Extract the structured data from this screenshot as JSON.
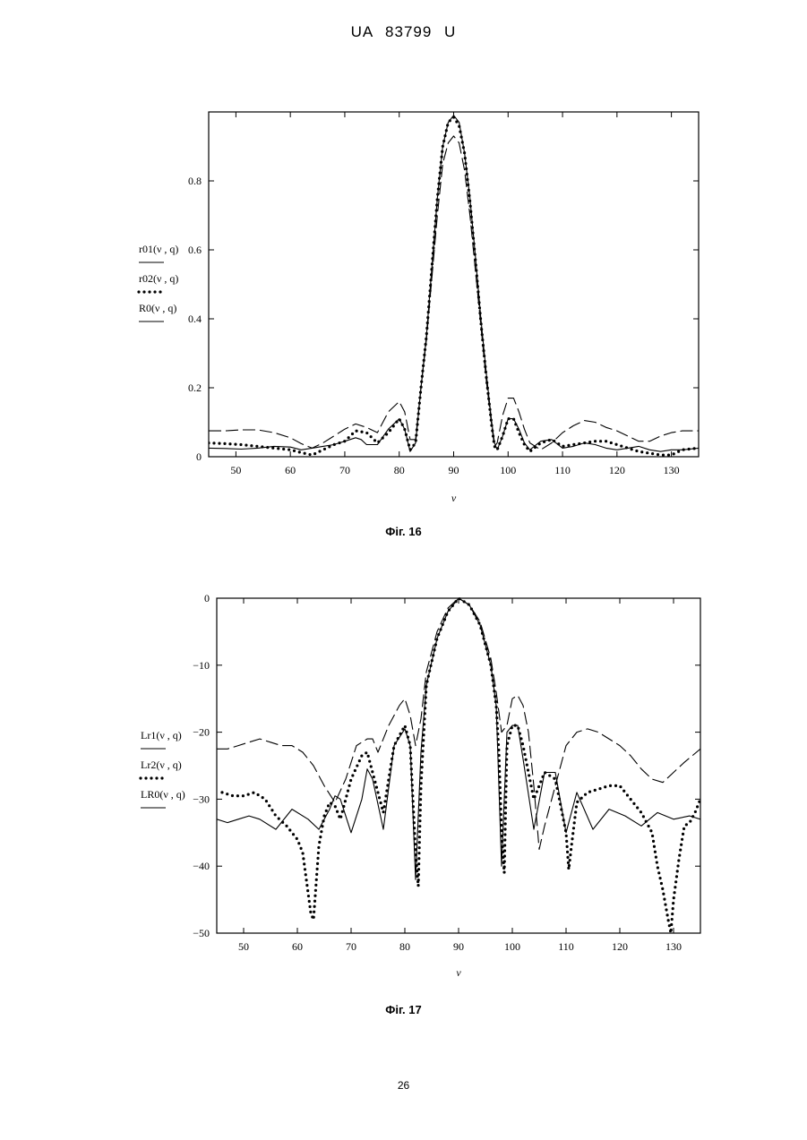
{
  "document": {
    "header": "UA 83799 U",
    "page_number": "26"
  },
  "chart_data": [
    {
      "type": "line",
      "caption": "Фіг. 16",
      "xlabel": "ν",
      "ylabel": "",
      "xlim": [
        45,
        135
      ],
      "ylim": [
        0,
        1
      ],
      "xticks": [
        "50",
        "60",
        "70",
        "80",
        "90",
        "100",
        "110",
        "120",
        "130"
      ],
      "xtick_values": [
        50,
        60,
        70,
        80,
        90,
        100,
        110,
        120,
        130
      ],
      "yticks": [
        "0",
        "0.2",
        "0.4",
        "0.6",
        "0.8"
      ],
      "ytick_values": [
        0,
        0.2,
        0.4,
        0.6,
        0.8
      ],
      "grid": false,
      "legend_position": "left",
      "series": [
        {
          "name": "r01(ν , q)",
          "style": "solid",
          "x": [
            45,
            48,
            51,
            54,
            57,
            60,
            62,
            64,
            66,
            68,
            70,
            72,
            73,
            74,
            76,
            78,
            80,
            81,
            82,
            83,
            84,
            85,
            86,
            87,
            88,
            89,
            90,
            91,
            92,
            93,
            94,
            95,
            96,
            97,
            97.5,
            98,
            99,
            100,
            101,
            102,
            103,
            104,
            106,
            108,
            110,
            112,
            114,
            116,
            118,
            120,
            122,
            124,
            126,
            128,
            130,
            132,
            135
          ],
          "y": [
            0.025,
            0.024,
            0.022,
            0.025,
            0.03,
            0.028,
            0.02,
            0.025,
            0.03,
            0.035,
            0.045,
            0.055,
            0.05,
            0.035,
            0.035,
            0.08,
            0.11,
            0.08,
            0.015,
            0.04,
            0.2,
            0.35,
            0.55,
            0.75,
            0.9,
            0.97,
            0.99,
            0.97,
            0.88,
            0.75,
            0.58,
            0.4,
            0.24,
            0.1,
            0.04,
            0.02,
            0.06,
            0.11,
            0.11,
            0.08,
            0.04,
            0.02,
            0.045,
            0.05,
            0.025,
            0.03,
            0.04,
            0.035,
            0.025,
            0.02,
            0.025,
            0.03,
            0.02,
            0.015,
            0.02,
            0.02,
            0.025
          ]
        },
        {
          "name": "r02(ν , q)",
          "style": "dotted",
          "x": [
            45,
            48,
            51,
            54,
            57,
            60,
            62,
            64,
            66,
            68,
            70,
            72,
            74,
            76,
            78,
            80,
            81,
            82,
            83,
            84,
            85,
            86,
            87,
            88,
            89,
            90,
            91,
            92,
            93,
            94,
            95,
            96,
            97,
            97.5,
            98,
            99,
            100,
            101,
            102,
            103,
            104,
            106,
            108,
            110,
            112,
            114,
            116,
            118,
            120,
            122,
            124,
            126,
            128,
            130,
            132,
            135
          ],
          "y": [
            0.04,
            0.038,
            0.035,
            0.03,
            0.025,
            0.02,
            0.012,
            0.005,
            0.02,
            0.035,
            0.045,
            0.075,
            0.07,
            0.04,
            0.07,
            0.11,
            0.08,
            0.02,
            0.04,
            0.2,
            0.35,
            0.55,
            0.75,
            0.9,
            0.97,
            0.985,
            0.96,
            0.88,
            0.74,
            0.57,
            0.39,
            0.23,
            0.09,
            0.03,
            0.02,
            0.06,
            0.11,
            0.11,
            0.07,
            0.035,
            0.015,
            0.04,
            0.05,
            0.03,
            0.035,
            0.04,
            0.045,
            0.045,
            0.035,
            0.025,
            0.015,
            0.01,
            0.005,
            0.005,
            0.02,
            0.025
          ]
        },
        {
          "name": "R0(ν , q)",
          "style": "dashed",
          "x": [
            45,
            48,
            51,
            54,
            57,
            60,
            62,
            64,
            66,
            68,
            70,
            72,
            74,
            76,
            78,
            80,
            81,
            82,
            83,
            84,
            85,
            86,
            87,
            88,
            89,
            90,
            91,
            92,
            93,
            94,
            95,
            96,
            97,
            97.5,
            98,
            99,
            100,
            101,
            102,
            103,
            104,
            106,
            108,
            110,
            112,
            114,
            116,
            118,
            120,
            122,
            124,
            126,
            128,
            130,
            132,
            135
          ],
          "y": [
            0.075,
            0.075,
            0.078,
            0.078,
            0.07,
            0.055,
            0.038,
            0.025,
            0.04,
            0.06,
            0.08,
            0.095,
            0.085,
            0.07,
            0.13,
            0.16,
            0.13,
            0.05,
            0.05,
            0.2,
            0.34,
            0.52,
            0.7,
            0.85,
            0.91,
            0.93,
            0.91,
            0.83,
            0.7,
            0.54,
            0.38,
            0.22,
            0.09,
            0.03,
            0.04,
            0.12,
            0.17,
            0.17,
            0.13,
            0.08,
            0.04,
            0.02,
            0.04,
            0.07,
            0.09,
            0.105,
            0.1,
            0.085,
            0.075,
            0.06,
            0.045,
            0.045,
            0.06,
            0.07,
            0.075,
            0.075
          ]
        }
      ],
      "legend": [
        {
          "label": "r01(ν , q)",
          "style": "solid"
        },
        {
          "label": "r02(ν , q)",
          "style": "dotted"
        },
        {
          "label": "R0(ν , q)",
          "style": "solid"
        }
      ]
    },
    {
      "type": "line",
      "caption": "Фіг. 17",
      "xlabel": "ν",
      "ylabel": "",
      "xlim": [
        45,
        135
      ],
      "ylim": [
        -50,
        0
      ],
      "xticks": [
        "50",
        "60",
        "70",
        "80",
        "90",
        "100",
        "110",
        "120",
        "130"
      ],
      "xtick_values": [
        50,
        60,
        70,
        80,
        90,
        100,
        110,
        120,
        130
      ],
      "yticks": [
        "0",
        "−10",
        "−20",
        "−30",
        "−40",
        "−50"
      ],
      "ytick_values": [
        0,
        -10,
        -20,
        -30,
        -40,
        -50
      ],
      "grid": false,
      "legend_position": "left",
      "series": [
        {
          "name": "Lr1(ν , q)",
          "style": "solid",
          "x": [
            45,
            47,
            49,
            51,
            53,
            56,
            59,
            62,
            64,
            66,
            67,
            68,
            70,
            72,
            73,
            74,
            76,
            78,
            80,
            81,
            82,
            83,
            84,
            86,
            88,
            90,
            92,
            94,
            96,
            97,
            98,
            99,
            100,
            101,
            102,
            104,
            106,
            108,
            110,
            112,
            115,
            118,
            121,
            124,
            127,
            130,
            133,
            135
          ],
          "y": [
            -33,
            -33.5,
            -33,
            -32.5,
            -33,
            -34.5,
            -31.5,
            -33,
            -34.5,
            -31.5,
            -29.5,
            -30,
            -35,
            -30,
            -25.5,
            -27,
            -34.5,
            -22,
            -19.5,
            -22,
            -42,
            -23,
            -13,
            -6,
            -2,
            0,
            -1,
            -4,
            -10,
            -16,
            -40,
            -20,
            -19,
            -19,
            -24,
            -34.5,
            -26,
            -26,
            -35,
            -29,
            -34.5,
            -31.5,
            -32.5,
            -34,
            -32,
            -33,
            -32.5,
            -33
          ]
        },
        {
          "name": "Lr2(ν , q)",
          "style": "dotted",
          "x": [
            46,
            48,
            50,
            52,
            54,
            56,
            58,
            59,
            60,
            61,
            61.5,
            62,
            62.5,
            63,
            64,
            65,
            66,
            67,
            68,
            70,
            72,
            73,
            74,
            76,
            78,
            80,
            81,
            81.5,
            82,
            82.5,
            83,
            84,
            86,
            88,
            90,
            92,
            94,
            96,
            97,
            97.5,
            98,
            98.5,
            99,
            100,
            101,
            102,
            104,
            106,
            108,
            110,
            110.5,
            111,
            112,
            114,
            116,
            118,
            120,
            122,
            124,
            126,
            127,
            128,
            129,
            129.5,
            130,
            131,
            132,
            133,
            134,
            135
          ],
          "y": [
            -29,
            -29.5,
            -29.5,
            -29,
            -30,
            -32.5,
            -34,
            -35,
            -36,
            -38,
            -41,
            -44,
            -47,
            -48,
            -37,
            -32.5,
            -30.5,
            -31,
            -33,
            -27,
            -23.5,
            -23,
            -26,
            -32,
            -22,
            -19,
            -22,
            -30,
            -38,
            -43,
            -28,
            -13,
            -6,
            -2,
            0,
            -1,
            -4,
            -10,
            -16,
            -23,
            -35,
            -41,
            -22,
            -19,
            -19,
            -22,
            -30,
            -26,
            -27,
            -35,
            -40.5,
            -37,
            -30.5,
            -29,
            -28.5,
            -28,
            -28,
            -30,
            -32,
            -35,
            -40,
            -43.5,
            -48,
            -50,
            -45,
            -39,
            -34,
            -33.5,
            -32,
            -30
          ]
        },
        {
          "name": "LR0(ν , q)",
          "style": "dashed",
          "x": [
            45,
            47,
            49,
            51,
            53,
            55,
            57,
            59,
            61,
            63,
            65,
            67,
            69,
            71,
            73,
            74,
            75,
            77,
            79,
            80,
            81,
            82,
            83,
            84,
            86,
            88,
            90,
            92,
            94,
            96,
            97,
            98,
            99,
            100,
            101,
            102,
            103,
            104,
            105,
            106,
            108,
            110,
            112,
            114,
            116,
            118,
            120,
            122,
            124,
            126,
            128,
            130,
            132,
            135
          ],
          "y": [
            -22.5,
            -22.5,
            -22,
            -21.5,
            -21,
            -21.5,
            -22,
            -22,
            -23,
            -25,
            -28,
            -30.5,
            -27,
            -22,
            -21,
            -21,
            -23,
            -19,
            -16,
            -15,
            -17.5,
            -22,
            -18,
            -11,
            -5,
            -1.5,
            0,
            -1,
            -3.5,
            -9,
            -14,
            -20,
            -19,
            -15,
            -14.5,
            -16,
            -20,
            -28,
            -37.5,
            -34,
            -28,
            -22,
            -20,
            -19.5,
            -20,
            -21,
            -22,
            -23.5,
            -25.5,
            -27,
            -27.5,
            -26,
            -24.5,
            -22.5
          ]
        }
      ],
      "legend": [
        {
          "label": "Lr1(ν , q)",
          "style": "solid"
        },
        {
          "label": "Lr2(ν , q)",
          "style": "dotted"
        },
        {
          "label": "LR0(ν , q)",
          "style": "solid"
        }
      ]
    }
  ]
}
